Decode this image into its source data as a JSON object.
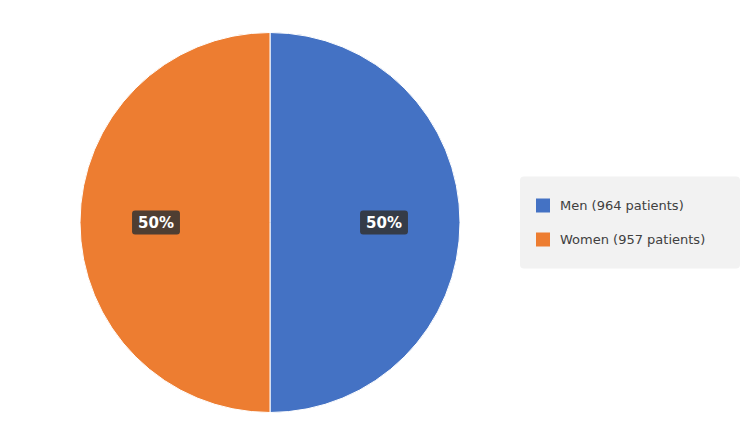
{
  "chart_data": {
    "type": "pie",
    "categories": [
      "Men (964 patients)",
      "Women (957 patients)"
    ],
    "values": [
      50,
      50
    ],
    "value_labels": [
      "50%",
      "50%"
    ],
    "colors": [
      "#4472C4",
      "#ED7D31"
    ],
    "data_labels": true,
    "legend": "right"
  }
}
